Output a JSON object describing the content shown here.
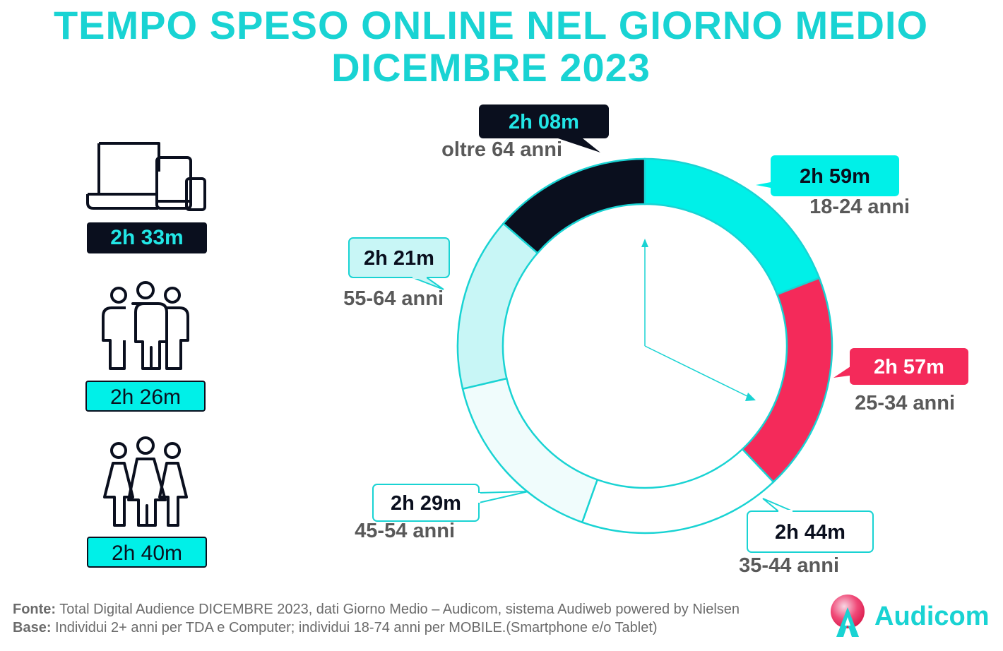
{
  "title": {
    "line1": "TEMPO SPESO ONLINE NEL GIORNO MEDIO",
    "line2": "DICEMBRE 2023"
  },
  "left_panel": {
    "items": [
      {
        "icon": "devices-icon",
        "value": "2h 33m"
      },
      {
        "icon": "men-group-icon",
        "value": "2h 26m"
      },
      {
        "icon": "women-group-icon",
        "value": "2h 40m"
      }
    ]
  },
  "chart_data": {
    "type": "pie",
    "style": "donut",
    "unit": "minutes",
    "categories": [
      "18-24 anni",
      "25-34 anni",
      "35-44 anni",
      "45-54 anni",
      "55-64 anni",
      "oltre 64 anni"
    ],
    "values": [
      179,
      177,
      164,
      149,
      141,
      128
    ],
    "value_labels": [
      "2h 59m",
      "2h 57m",
      "2h 44m",
      "2h 29m",
      "2h 21m",
      "2h 08m"
    ],
    "colors": [
      "#00f0e8",
      "#f42a5a",
      "#ffffff",
      "#f0fcfc",
      "#c8f6f6",
      "#0a0f1e"
    ],
    "label_colors": [
      "#00f0e8",
      "#f42a5a",
      "#ffffff",
      "#ffffff",
      "#c8f6f6",
      "#0a0f1e"
    ],
    "label_text_colors": [
      "#0a0f1e",
      "#ffffff",
      "#0a0f1e",
      "#0a0f1e",
      "#0a0f1e",
      "#22e6e6"
    ],
    "outline_color": "#19d3d3",
    "clock_hands": true
  },
  "footer": {
    "fonte_label": "Fonte:",
    "fonte_text": " Total Digital Audience DICEMBRE 2023, dati Giorno Medio – Audicom, sistema Audiweb powered by Nielsen",
    "base_label": "Base:",
    "base_text": "  Individui 2+ anni per TDA e Computer; individui 18-74 anni per MOBILE.(Smartphone e/o Tablet)"
  },
  "logo": {
    "text": "Audicom"
  }
}
